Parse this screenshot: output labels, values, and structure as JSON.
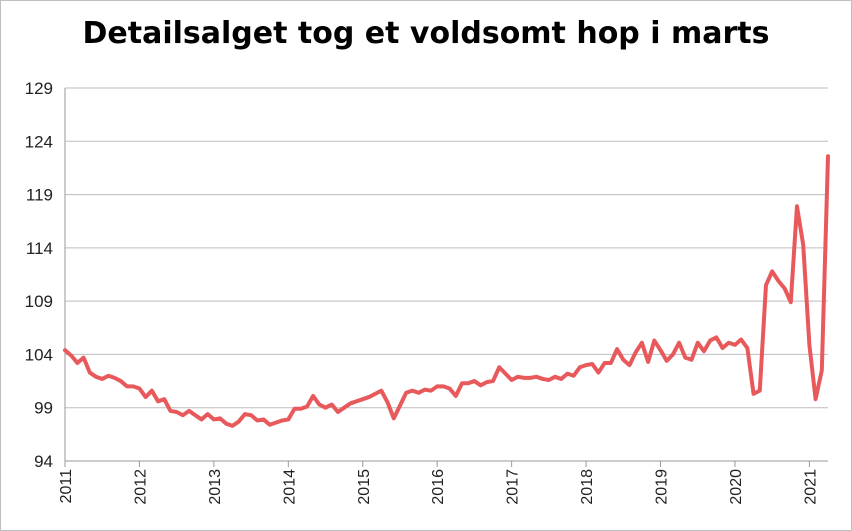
{
  "chart_data": {
    "type": "line",
    "title": "Detailsalget tog et voldsomt hop i marts",
    "xlabel": "",
    "ylabel": "",
    "ylim": [
      94,
      129
    ],
    "yticks": [
      94,
      99,
      104,
      109,
      114,
      119,
      124,
      129
    ],
    "xticks": [
      "2011",
      "2012",
      "2013",
      "2014",
      "2015",
      "2016",
      "2017",
      "2018",
      "2019",
      "2020",
      "2021"
    ],
    "grid": "horizontal",
    "line_color": "#e8595c",
    "x_start": "2011-01",
    "x_end": "2021-03",
    "series": [
      {
        "values": [
          104.4,
          103.9,
          103.2,
          103.7,
          102.3,
          101.9,
          101.7,
          102.0,
          101.8,
          101.5,
          101.0,
          101.0,
          100.8,
          100.0,
          100.6,
          99.6,
          99.8,
          98.7,
          98.6,
          98.3,
          98.7,
          98.3,
          97.9,
          98.4,
          97.9,
          98.0,
          97.5,
          97.3,
          97.7,
          98.4,
          98.3,
          97.8,
          97.9,
          97.4,
          97.6,
          97.8,
          97.9,
          98.9,
          98.9,
          99.1,
          100.1,
          99.3,
          99.0,
          99.3,
          98.6,
          99.0,
          99.4,
          99.6,
          99.8,
          100.0,
          100.3,
          100.6,
          99.5,
          98.0,
          99.2,
          100.4,
          100.6,
          100.4,
          100.7,
          100.6,
          101.0,
          101.0,
          100.8,
          100.1,
          101.3,
          101.3,
          101.5,
          101.1,
          101.4,
          101.5,
          102.8,
          102.2,
          101.6,
          101.9,
          101.8,
          101.8,
          101.9,
          101.7,
          101.6,
          101.9,
          101.7,
          102.2,
          102.0,
          102.8,
          103.0,
          103.1,
          102.3,
          103.2,
          103.2,
          104.5,
          103.5,
          103.0,
          104.2,
          105.1,
          103.3,
          105.3,
          104.4,
          103.4,
          104.0,
          105.1,
          103.7,
          103.5,
          105.1,
          104.3,
          105.3,
          105.6,
          104.6,
          105.1,
          104.9,
          105.4,
          104.6,
          100.3,
          100.6,
          110.5,
          111.8,
          110.9,
          110.2,
          108.9,
          117.9,
          114.3,
          104.9,
          99.8,
          102.5,
          122.6
        ]
      }
    ]
  }
}
